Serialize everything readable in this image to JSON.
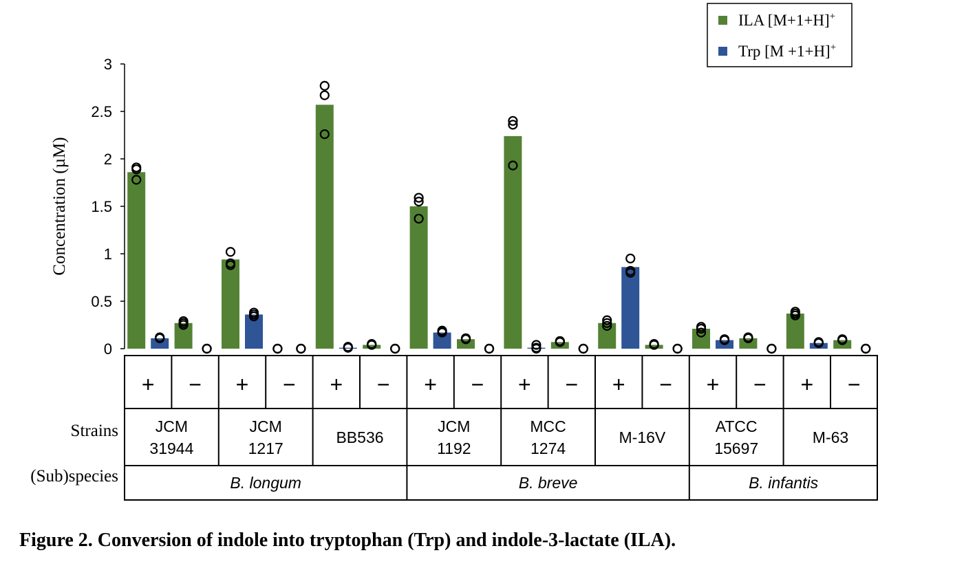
{
  "caption": "Figure 2. Conversion of indole into tryptophan (Trp) and indole-3-lactate (ILA).",
  "colors": {
    "ila": "#548235",
    "trp": "#2f5597"
  },
  "chart_data": {
    "type": "bar",
    "ylabel": "Concentration (µM)",
    "ylim": [
      0,
      3
    ],
    "yticks": [
      {
        "value": 0,
        "label": "0"
      },
      {
        "value": 0.5,
        "label": "0.5"
      },
      {
        "value": 1,
        "label": "1"
      },
      {
        "value": 1.5,
        "label": "1.5"
      },
      {
        "value": 2,
        "label": "2"
      },
      {
        "value": 2.5,
        "label": "2.5"
      },
      {
        "value": 3,
        "label": "3"
      }
    ],
    "grid": false,
    "legend_position": "top-right",
    "legend": [
      {
        "label": "ILA [M+1+H]",
        "sup": "+",
        "color": "#548235"
      },
      {
        "label": "Trp [M +1+H]",
        "sup": "+",
        "color": "#2f5597"
      }
    ],
    "row_labels": {
      "strains": "Strains",
      "species": "(Sub)species"
    },
    "species": [
      {
        "name": "B. longum",
        "strain_count": 3
      },
      {
        "name": "B. breve",
        "strain_count": 3
      },
      {
        "name": "B. infantis",
        "strain_count": 2
      }
    ],
    "strains": [
      {
        "lines": [
          "JCM",
          "31944"
        ],
        "conditions": [
          {
            "sign": "+",
            "ila": 1.86,
            "ila_points": [
              1.91,
              1.89,
              1.78
            ],
            "trp": 0.11,
            "trp_points": [
              0.12,
              0.11,
              0.11
            ]
          },
          {
            "sign": "−",
            "ila": 0.27,
            "ila_points": [
              0.29,
              0.27,
              0.25
            ],
            "trp": 0.0,
            "trp_points": [
              0.0,
              0.0,
              0.0
            ]
          }
        ]
      },
      {
        "lines": [
          "JCM",
          "1217"
        ],
        "conditions": [
          {
            "sign": "+",
            "ila": 0.94,
            "ila_points": [
              1.02,
              0.9,
              0.88
            ],
            "trp": 0.36,
            "trp_points": [
              0.38,
              0.36,
              0.34
            ]
          },
          {
            "sign": "−",
            "ila": 0.0,
            "ila_points": [
              0.0,
              0.0,
              0.0
            ],
            "trp": 0.0,
            "trp_points": [
              0.0,
              0.0,
              0.0
            ]
          }
        ]
      },
      {
        "lines": [
          "BB536"
        ],
        "conditions": [
          {
            "sign": "+",
            "ila": 2.57,
            "ila_points": [
              2.77,
              2.67,
              2.26
            ],
            "trp": 0.01,
            "trp_points": [
              0.02,
              0.01,
              0.01
            ]
          },
          {
            "sign": "−",
            "ila": 0.04,
            "ila_points": [
              0.05,
              0.04,
              0.04
            ],
            "trp": 0.0,
            "trp_points": [
              0.0,
              0.0,
              0.0
            ]
          }
        ]
      },
      {
        "lines": [
          "JCM",
          "1192"
        ],
        "conditions": [
          {
            "sign": "+",
            "ila": 1.5,
            "ila_points": [
              1.59,
              1.55,
              1.37
            ],
            "trp": 0.17,
            "trp_points": [
              0.19,
              0.18,
              0.17
            ]
          },
          {
            "sign": "−",
            "ila": 0.1,
            "ila_points": [
              0.11,
              0.1,
              0.1
            ],
            "trp": 0.0,
            "trp_points": [
              0.0,
              0.0,
              0.0
            ]
          }
        ]
      },
      {
        "lines": [
          "MCC",
          "1274"
        ],
        "conditions": [
          {
            "sign": "+",
            "ila": 2.24,
            "ila_points": [
              2.4,
              2.36,
              1.93
            ],
            "trp": 0.01,
            "trp_points": [
              0.04,
              0.01,
              0.0
            ]
          },
          {
            "sign": "−",
            "ila": 0.07,
            "ila_points": [
              0.08,
              0.08,
              0.07
            ],
            "trp": 0.0,
            "trp_points": [
              0.0,
              0.0,
              0.0
            ]
          }
        ]
      },
      {
        "lines": [
          "M-16V"
        ],
        "conditions": [
          {
            "sign": "+",
            "ila": 0.27,
            "ila_points": [
              0.3,
              0.27,
              0.24
            ],
            "trp": 0.86,
            "trp_points": [
              0.95,
              0.82,
              0.8
            ]
          },
          {
            "sign": "−",
            "ila": 0.04,
            "ila_points": [
              0.05,
              0.04,
              0.04
            ],
            "trp": 0.0,
            "trp_points": [
              0.0,
              0.0,
              0.0
            ]
          }
        ]
      },
      {
        "lines": [
          "ATCC",
          "15697"
        ],
        "conditions": [
          {
            "sign": "+",
            "ila": 0.21,
            "ila_points": [
              0.23,
              0.21,
              0.17
            ],
            "trp": 0.09,
            "trp_points": [
              0.1,
              0.09,
              0.09
            ]
          },
          {
            "sign": "−",
            "ila": 0.11,
            "ila_points": [
              0.12,
              0.11,
              0.11
            ],
            "trp": 0.0,
            "trp_points": [
              0.0,
              0.0,
              0.0
            ]
          }
        ]
      },
      {
        "lines": [
          "M-63"
        ],
        "conditions": [
          {
            "sign": "+",
            "ila": 0.37,
            "ila_points": [
              0.39,
              0.37,
              0.35
            ],
            "trp": 0.06,
            "trp_points": [
              0.07,
              0.06,
              0.06
            ]
          },
          {
            "sign": "−",
            "ila": 0.09,
            "ila_points": [
              0.1,
              0.09,
              0.09
            ],
            "trp": 0.0,
            "trp_points": [
              0.0,
              0.0,
              0.0
            ]
          }
        ]
      }
    ]
  }
}
